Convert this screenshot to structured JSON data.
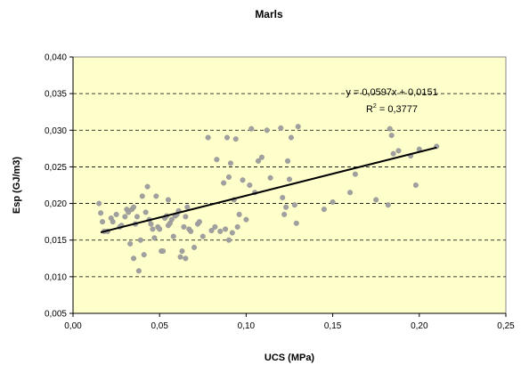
{
  "chart_data": {
    "type": "scatter",
    "title": "Marls",
    "xlabel": "UCS (MPa)",
    "ylabel": "Esp (GJ/m3)",
    "xlim": [
      0,
      0.25
    ],
    "ylim": [
      0.005,
      0.04
    ],
    "x_ticks": [
      "0,00",
      "0,05",
      "0,10",
      "0,15",
      "0,20",
      "0,25"
    ],
    "y_ticks": [
      "0,005",
      "0,010",
      "0,015",
      "0,020",
      "0,025",
      "0,030",
      "0,035",
      "0,040"
    ],
    "x_tick_values": [
      0,
      0.05,
      0.1,
      0.15,
      0.2,
      0.25
    ],
    "y_tick_values": [
      0.005,
      0.01,
      0.015,
      0.02,
      0.025,
      0.03,
      0.035,
      0.04
    ],
    "grid": {
      "horizontal": true,
      "vertical": false
    },
    "colors": {
      "plot_background": "#ffffcc",
      "point": "#a0a0a0",
      "trendline": "#000000",
      "grid": "#000000"
    },
    "trendline": {
      "slope": 0.0597,
      "intercept": 0.0151,
      "x_range": [
        0.016,
        0.21
      ],
      "equation": "y = 0,0597x + 0,0151",
      "r2_label": "R",
      "r2_sup": "2",
      "r2_value": " = 0,3777"
    },
    "points": [
      [
        0.015,
        0.02
      ],
      [
        0.016,
        0.0187
      ],
      [
        0.017,
        0.0175
      ],
      [
        0.018,
        0.0162
      ],
      [
        0.02,
        0.0162
      ],
      [
        0.022,
        0.018
      ],
      [
        0.023,
        0.0175
      ],
      [
        0.025,
        0.0185
      ],
      [
        0.027,
        0.0168
      ],
      [
        0.028,
        0.017
      ],
      [
        0.03,
        0.0182
      ],
      [
        0.031,
        0.0192
      ],
      [
        0.032,
        0.0188
      ],
      [
        0.033,
        0.0145
      ],
      [
        0.034,
        0.0192
      ],
      [
        0.035,
        0.0125
      ],
      [
        0.035,
        0.0195
      ],
      [
        0.036,
        0.0172
      ],
      [
        0.037,
        0.0182
      ],
      [
        0.038,
        0.0108
      ],
      [
        0.039,
        0.015
      ],
      [
        0.04,
        0.021
      ],
      [
        0.041,
        0.013
      ],
      [
        0.042,
        0.0188
      ],
      [
        0.043,
        0.0223
      ],
      [
        0.044,
        0.0178
      ],
      [
        0.045,
        0.0172
      ],
      [
        0.046,
        0.0165
      ],
      [
        0.047,
        0.0153
      ],
      [
        0.048,
        0.021
      ],
      [
        0.049,
        0.0168
      ],
      [
        0.05,
        0.0165
      ],
      [
        0.051,
        0.0135
      ],
      [
        0.052,
        0.0135
      ],
      [
        0.053,
        0.018
      ],
      [
        0.054,
        0.0183
      ],
      [
        0.055,
        0.0205
      ],
      [
        0.055,
        0.017
      ],
      [
        0.056,
        0.0173
      ],
      [
        0.057,
        0.0178
      ],
      [
        0.058,
        0.0155
      ],
      [
        0.059,
        0.0183
      ],
      [
        0.06,
        0.0185
      ],
      [
        0.061,
        0.019
      ],
      [
        0.062,
        0.0127
      ],
      [
        0.063,
        0.0135
      ],
      [
        0.064,
        0.0168
      ],
      [
        0.065,
        0.0125
      ],
      [
        0.065,
        0.0182
      ],
      [
        0.066,
        0.0195
      ],
      [
        0.067,
        0.0165
      ],
      [
        0.068,
        0.0162
      ],
      [
        0.07,
        0.014
      ],
      [
        0.072,
        0.0172
      ],
      [
        0.073,
        0.0175
      ],
      [
        0.075,
        0.0155
      ],
      [
        0.078,
        0.029
      ],
      [
        0.08,
        0.0163
      ],
      [
        0.082,
        0.0168
      ],
      [
        0.083,
        0.026
      ],
      [
        0.085,
        0.0162
      ],
      [
        0.087,
        0.0228
      ],
      [
        0.088,
        0.0165
      ],
      [
        0.089,
        0.029
      ],
      [
        0.09,
        0.0236
      ],
      [
        0.09,
        0.015
      ],
      [
        0.091,
        0.0255
      ],
      [
        0.092,
        0.016
      ],
      [
        0.093,
        0.0205
      ],
      [
        0.094,
        0.0288
      ],
      [
        0.095,
        0.0168
      ],
      [
        0.096,
        0.0185
      ],
      [
        0.098,
        0.0232
      ],
      [
        0.1,
        0.0178
      ],
      [
        0.102,
        0.0225
      ],
      [
        0.103,
        0.0302
      ],
      [
        0.105,
        0.0215
      ],
      [
        0.107,
        0.0258
      ],
      [
        0.109,
        0.0263
      ],
      [
        0.112,
        0.03
      ],
      [
        0.114,
        0.0235
      ],
      [
        0.12,
        0.0303
      ],
      [
        0.121,
        0.0208
      ],
      [
        0.122,
        0.0185
      ],
      [
        0.123,
        0.0195
      ],
      [
        0.124,
        0.0258
      ],
      [
        0.125,
        0.0233
      ],
      [
        0.126,
        0.029
      ],
      [
        0.128,
        0.0198
      ],
      [
        0.129,
        0.0173
      ],
      [
        0.13,
        0.0305
      ],
      [
        0.145,
        0.0192
      ],
      [
        0.15,
        0.0202
      ],
      [
        0.16,
        0.0215
      ],
      [
        0.163,
        0.024
      ],
      [
        0.175,
        0.0205
      ],
      [
        0.182,
        0.0198
      ],
      [
        0.183,
        0.0302
      ],
      [
        0.184,
        0.0293
      ],
      [
        0.185,
        0.0268
      ],
      [
        0.188,
        0.0272
      ],
      [
        0.195,
        0.0265
      ],
      [
        0.198,
        0.0225
      ],
      [
        0.2,
        0.0274
      ],
      [
        0.21,
        0.0278
      ]
    ]
  }
}
